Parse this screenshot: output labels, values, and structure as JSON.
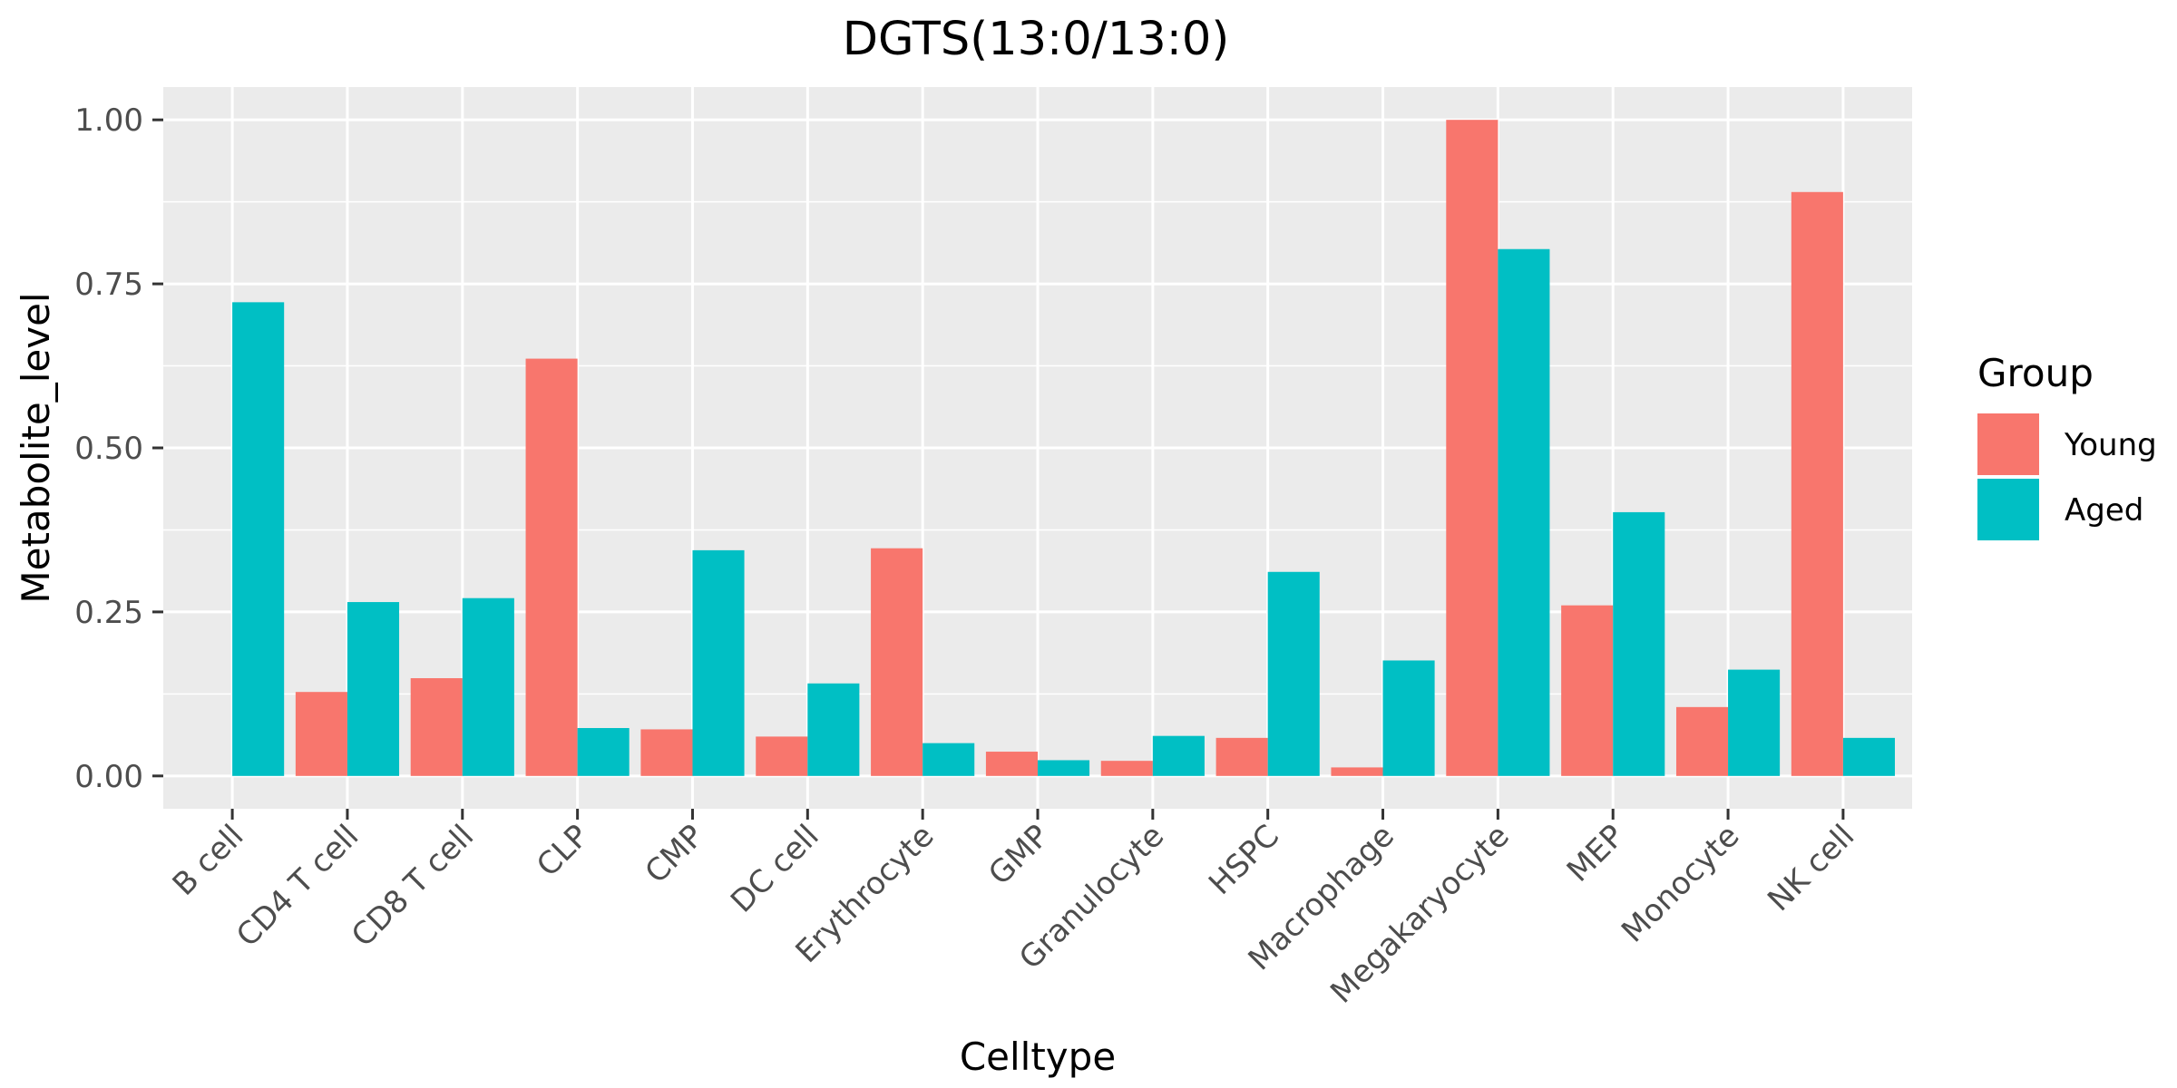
{
  "chart_data": {
    "type": "bar",
    "title": "DGTS(13:0/13:0)",
    "xlabel": "Celltype",
    "ylabel": "Metabolite_level",
    "ylim": [
      -0.05,
      1.05
    ],
    "yticks": [
      0.0,
      0.25,
      0.5,
      0.75,
      1.0
    ],
    "ytick_labels": [
      "0.00",
      "0.25",
      "0.50",
      "0.75",
      "1.00"
    ],
    "grid": true,
    "legend": {
      "title": "Group",
      "placement": "right"
    },
    "categories": [
      "B cell",
      "CD4 T cell",
      "CD8 T cell",
      "CLP",
      "CMP",
      "DC cell",
      "Erythrocyte",
      "GMP",
      "Granulocyte",
      "HSPC",
      "Macrophage",
      "Megakaryocyte",
      "MEP",
      "Monocyte",
      "NK cell"
    ],
    "series": [
      {
        "name": "Young",
        "color": "#F8766D",
        "values": [
          0.0,
          0.128,
          0.149,
          0.636,
          0.071,
          0.06,
          0.347,
          0.037,
          0.023,
          0.058,
          0.013,
          1.0,
          0.26,
          0.105,
          0.89
        ]
      },
      {
        "name": "Aged",
        "color": "#00BFC4",
        "values": [
          0.722,
          0.265,
          0.271,
          0.073,
          0.344,
          0.141,
          0.05,
          0.024,
          0.061,
          0.311,
          0.176,
          0.803,
          0.402,
          0.162,
          0.058
        ]
      }
    ]
  }
}
